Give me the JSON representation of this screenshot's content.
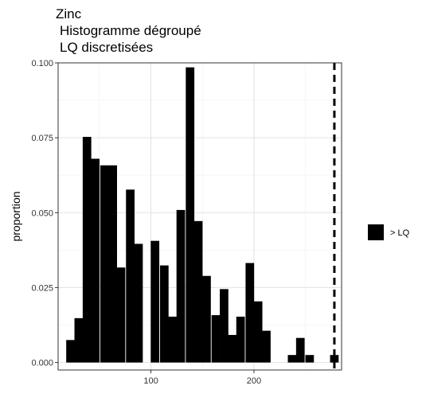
{
  "chart_data": {
    "type": "bar",
    "title_lines": [
      "Zinc",
      "Histogramme dégroupé",
      "LQ discretisées"
    ],
    "xlabel": "",
    "ylabel": "proportion",
    "xlim": [
      10,
      285
    ],
    "ylim": [
      -0.0025,
      0.1
    ],
    "x_ticks": [
      100,
      200
    ],
    "y_ticks": [
      0.0,
      0.025,
      0.05,
      0.075,
      0.1
    ],
    "y_tick_labels": [
      "0.000",
      "0.025",
      "0.050",
      "0.075",
      "0.100"
    ],
    "grid": true,
    "bin_width": 8.3,
    "bins": [
      {
        "x": 22,
        "y": 0.0075
      },
      {
        "x": 30,
        "y": 0.0148
      },
      {
        "x": 38,
        "y": 0.0753
      },
      {
        "x": 46,
        "y": 0.068
      },
      {
        "x": 55,
        "y": 0.0658
      },
      {
        "x": 63,
        "y": 0.0658
      },
      {
        "x": 71,
        "y": 0.0317
      },
      {
        "x": 80,
        "y": 0.0577
      },
      {
        "x": 88,
        "y": 0.0396
      },
      {
        "x": 104,
        "y": 0.0406
      },
      {
        "x": 113,
        "y": 0.0324
      },
      {
        "x": 121,
        "y": 0.0153
      },
      {
        "x": 129,
        "y": 0.0509
      },
      {
        "x": 138,
        "y": 0.0985
      },
      {
        "x": 146,
        "y": 0.0472
      },
      {
        "x": 154,
        "y": 0.0289
      },
      {
        "x": 163,
        "y": 0.0158
      },
      {
        "x": 171,
        "y": 0.0245
      },
      {
        "x": 179,
        "y": 0.0092
      },
      {
        "x": 187,
        "y": 0.0153
      },
      {
        "x": 196,
        "y": 0.0332
      },
      {
        "x": 204,
        "y": 0.0204
      },
      {
        "x": 212,
        "y": 0.0106
      },
      {
        "x": 237,
        "y": 0.0025
      },
      {
        "x": 245,
        "y": 0.0082
      },
      {
        "x": 254,
        "y": 0.0025
      },
      {
        "x": 278,
        "y": 0.0025
      }
    ],
    "lq_line_x": 278,
    "bar_color": "#000000",
    "legend": {
      "label": "> LQ",
      "position": "right",
      "color": "#000000"
    }
  }
}
